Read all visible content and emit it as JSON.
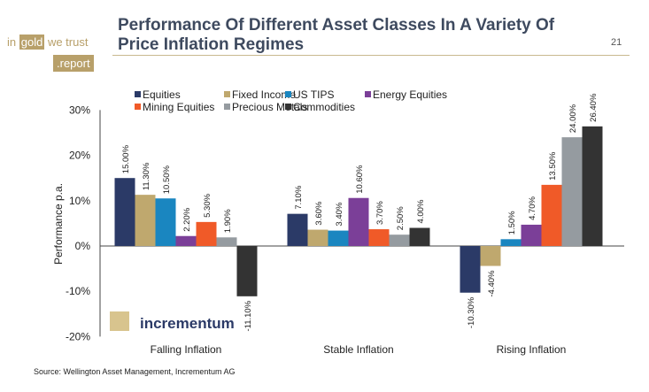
{
  "header": {
    "title": "Performance Of Different Asset Classes In A Variety Of Price Inflation Regimes",
    "page_number": "21",
    "logo": {
      "in": "in",
      "gold": "gold",
      "we_trust": "we trust",
      "report": ".report"
    }
  },
  "source": "Source: Wellington Asset Management, Incrementum AG",
  "watermark": "incrementum",
  "chart_data": {
    "type": "bar",
    "title": "",
    "xlabel": "",
    "ylabel": "Performance p.a.",
    "ylim": [
      -20,
      30
    ],
    "yticks": [
      "-20%",
      "-10%",
      "0%",
      "10%",
      "20%",
      "30%"
    ],
    "grid": false,
    "legend": "top",
    "categories": [
      "Falling Inflation",
      "Stable Inflation",
      "Rising Inflation"
    ],
    "series": [
      {
        "name": "Equities",
        "color": "#2b3a67",
        "values": [
          15.0,
          7.1,
          -10.3
        ],
        "labels": [
          "15.00%",
          "7.10%",
          "-10.30%"
        ]
      },
      {
        "name": "Fixed Income",
        "color": "#bfa86e",
        "values": [
          11.3,
          3.6,
          -4.4
        ],
        "labels": [
          "11.30%",
          "3.60%",
          "-4.40%"
        ]
      },
      {
        "name": "US TIPS",
        "color": "#1a86c0",
        "values": [
          10.5,
          3.4,
          1.5
        ],
        "labels": [
          "10.50%",
          "3.40%",
          "1.50%"
        ]
      },
      {
        "name": "Energy Equities",
        "color": "#7b3f98",
        "values": [
          2.2,
          10.6,
          4.7
        ],
        "labels": [
          "2.20%",
          "10.60%",
          "4.70%"
        ]
      },
      {
        "name": "Mining Equities",
        "color": "#f05a28",
        "values": [
          5.3,
          3.7,
          13.5
        ],
        "labels": [
          "5.30%",
          "3.70%",
          "13.50%"
        ]
      },
      {
        "name": "Precious Metals",
        "color": "#959ba0",
        "values": [
          1.9,
          2.5,
          24.0
        ],
        "labels": [
          "1.90%",
          "2.50%",
          "24.00%"
        ]
      },
      {
        "name": "Commodities",
        "color": "#333333",
        "values": [
          -11.1,
          4.0,
          26.4
        ],
        "labels": [
          "-11.10%",
          "4.00%",
          "26.40%"
        ]
      }
    ]
  }
}
